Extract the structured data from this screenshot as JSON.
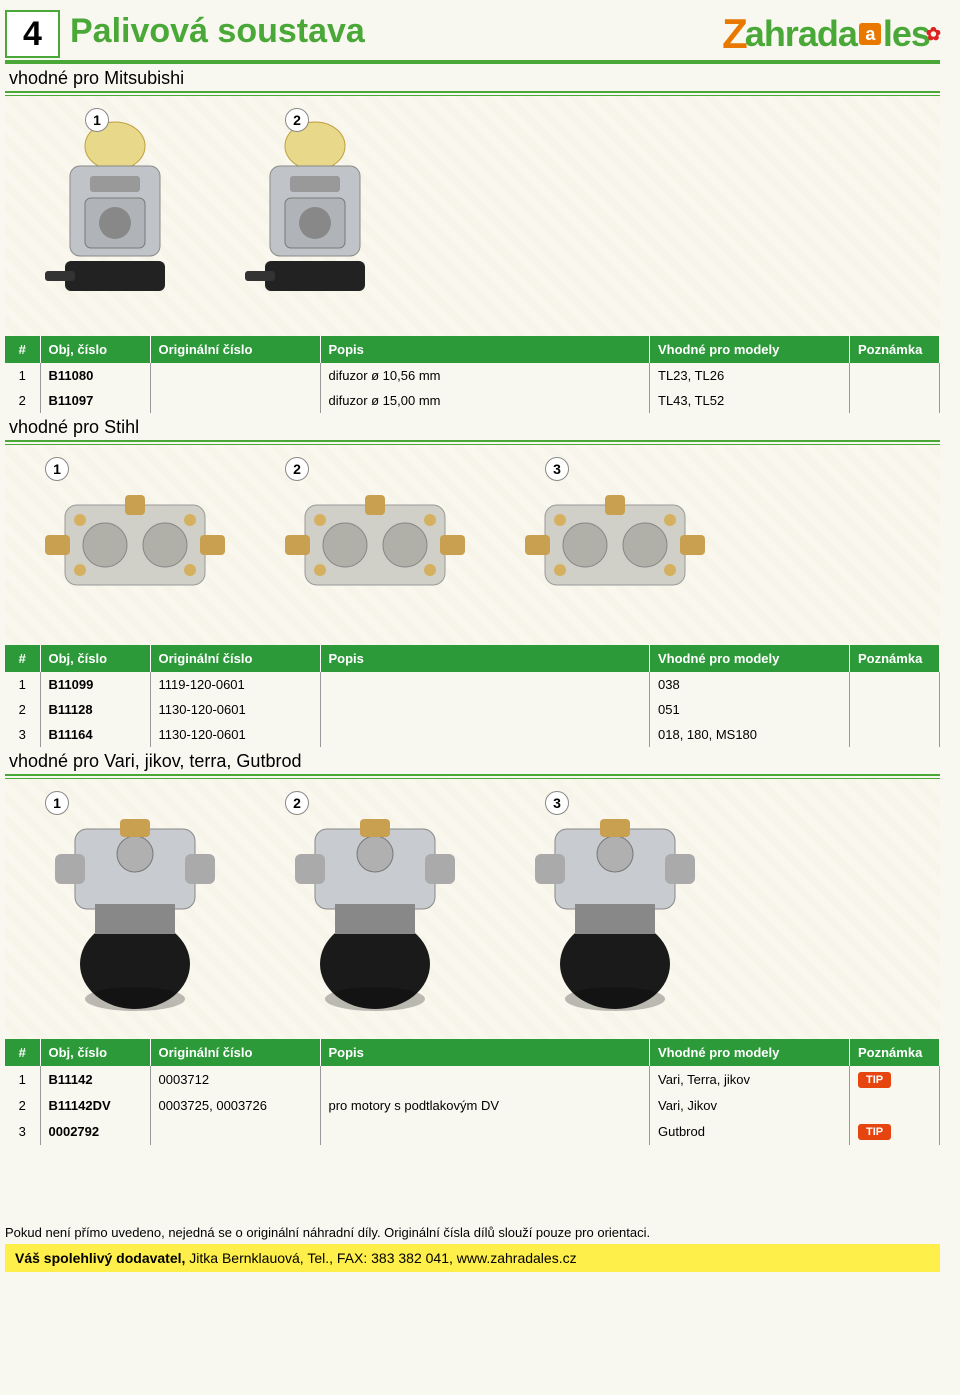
{
  "header": {
    "chapter": "4",
    "title": "Palivová soustava",
    "logo": {
      "z": "Z",
      "main1": "ahrada",
      "a": "a",
      "main2": "les",
      "leaf": "✿"
    }
  },
  "colors": {
    "brand_green": "#4aa838",
    "table_green": "#2d9a3a",
    "tip_orange": "#e64510",
    "footer_yellow": "#ffef4a",
    "logo_orange": "#e87800"
  },
  "table_headers": {
    "num": "#",
    "sku": "Obj, číslo",
    "orig": "Originální číslo",
    "desc": "Popis",
    "models": "Vhodné pro modely",
    "note": "Poznámka"
  },
  "sections": [
    {
      "title": "vhodné pro Mitsubishi",
      "image_count": 2,
      "image_style": "carb-tall",
      "rows": [
        {
          "n": "1",
          "sku": "B11080",
          "orig": "",
          "desc": "difuzor ø 10,56 mm",
          "models": "TL23, TL26",
          "note": ""
        },
        {
          "n": "2",
          "sku": "B11097",
          "orig": "",
          "desc": "difuzor ø 15,00 mm",
          "models": "TL43, TL52",
          "note": ""
        }
      ]
    },
    {
      "title": "vhodné pro Stihl",
      "image_count": 3,
      "image_style": "carb-flat",
      "rows": [
        {
          "n": "1",
          "sku": "B11099",
          "orig": "1119-120-0601",
          "desc": "",
          "models": "038",
          "note": ""
        },
        {
          "n": "2",
          "sku": "B11128",
          "orig": "1130-120-0601",
          "desc": "",
          "models": "051",
          "note": ""
        },
        {
          "n": "3",
          "sku": "B11164",
          "orig": "1130-120-0601",
          "desc": "",
          "models": "018, 180, MS180",
          "note": ""
        }
      ]
    },
    {
      "title": "vhodné pro Vari, jikov, terra, Gutbrod",
      "image_count": 3,
      "image_style": "carb-bowl",
      "rows": [
        {
          "n": "1",
          "sku": "B11142",
          "orig": "0003712",
          "desc": "",
          "models": "Vari, Terra, jikov",
          "note": "TIP"
        },
        {
          "n": "2",
          "sku": "B11142DV",
          "orig": "0003725, 0003726",
          "desc": "pro motory s podtlakovým DV",
          "models": "Vari, Jikov",
          "note": ""
        },
        {
          "n": "3",
          "sku": "0002792",
          "orig": "",
          "desc": "",
          "models": "Gutbrod",
          "note": "TIP"
        }
      ]
    }
  ],
  "footer": {
    "note": "Pokud není přímo uvedeno, nejedná se o originální náhradní díly. Originální čísla dílů slouží pouze pro orientaci.",
    "bar_bold": "Váš spolehlivý dodavatel,",
    "bar_rest": " Jitka Bernklauová, Tel., FAX: 383 382 041, www.zahradales.cz"
  }
}
